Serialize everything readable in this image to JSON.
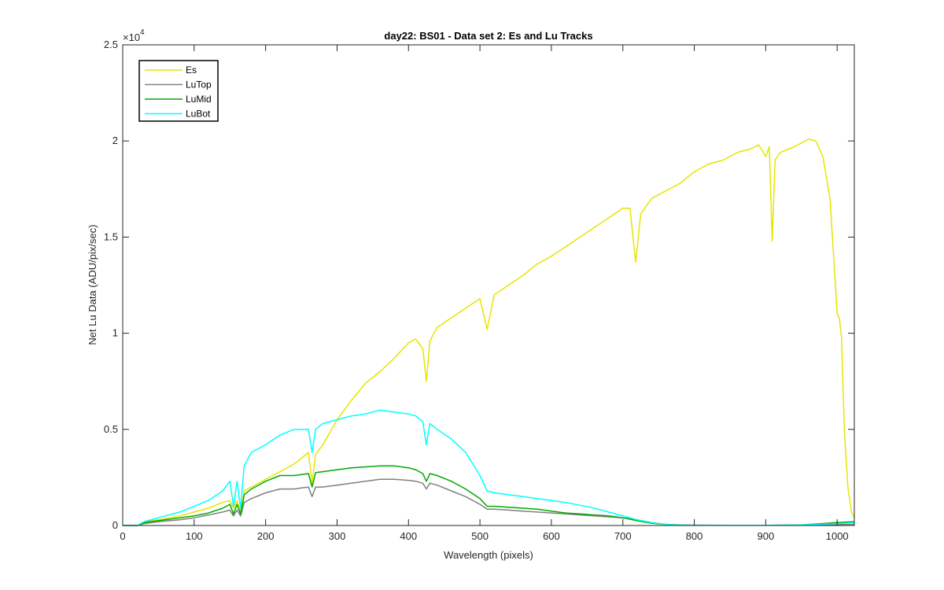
{
  "chart_data": {
    "type": "line",
    "title": "day22: BS01 - Data set 2: Es and Lu Tracks",
    "xlabel": "Wavelength (pixels)",
    "ylabel": "Net Lu Data (ADU/pix/sec)",
    "xlim": [
      0,
      1024
    ],
    "ylim": [
      0,
      25000
    ],
    "y_exponent_label": "×10",
    "y_exponent_power": "4",
    "xticks": [
      0,
      100,
      200,
      300,
      400,
      500,
      600,
      700,
      800,
      900,
      1000
    ],
    "xtick_labels": [
      "0",
      "100",
      "200",
      "300",
      "400",
      "500",
      "600",
      "700",
      "800",
      "900",
      "1000"
    ],
    "yticks": [
      0,
      5000,
      10000,
      15000,
      20000,
      25000
    ],
    "ytick_labels": [
      "0",
      "0.5",
      "1",
      "1.5",
      "2",
      "2.5"
    ],
    "grid": false,
    "legend_position": "top-left",
    "series": [
      {
        "name": "Es",
        "color": "#e6e600",
        "x": [
          0,
          20,
          30,
          50,
          80,
          100,
          120,
          140,
          150,
          155,
          160,
          165,
          170,
          180,
          200,
          220,
          240,
          250,
          260,
          265,
          270,
          280,
          300,
          320,
          340,
          360,
          380,
          400,
          410,
          420,
          425,
          430,
          440,
          460,
          480,
          500,
          510,
          520,
          540,
          560,
          580,
          600,
          620,
          640,
          660,
          680,
          700,
          710,
          718,
          725,
          740,
          760,
          780,
          800,
          820,
          840,
          860,
          880,
          890,
          900,
          905,
          909,
          913,
          920,
          940,
          960,
          970,
          980,
          990,
          995,
          1000,
          1003,
          1006,
          1010,
          1015,
          1020,
          1024
        ],
        "y": [
          0,
          0,
          200,
          300,
          500,
          700,
          900,
          1200,
          1300,
          900,
          1300,
          700,
          1800,
          2000,
          2400,
          2800,
          3200,
          3500,
          3800,
          2200,
          3700,
          4200,
          5500,
          6500,
          7400,
          8000,
          8700,
          9500,
          9700,
          9200,
          7500,
          9600,
          10300,
          10800,
          11300,
          11800,
          10200,
          12000,
          12500,
          13000,
          13600,
          14000,
          14500,
          15000,
          15500,
          16000,
          16500,
          16500,
          13700,
          16200,
          17000,
          17400,
          17800,
          18400,
          18800,
          19000,
          19400,
          19600,
          19800,
          19200,
          19700,
          14800,
          19000,
          19400,
          19700,
          20100,
          20000,
          19200,
          17000,
          14000,
          11000,
          10800,
          9800,
          5000,
          2000,
          700,
          400
        ]
      },
      {
        "name": "LuTop",
        "color": "#808080",
        "x": [
          0,
          20,
          30,
          50,
          80,
          100,
          120,
          140,
          150,
          155,
          160,
          165,
          170,
          180,
          200,
          220,
          240,
          250,
          260,
          265,
          270,
          280,
          300,
          320,
          340,
          360,
          380,
          400,
          410,
          420,
          425,
          430,
          440,
          460,
          480,
          500,
          510,
          520,
          540,
          560,
          580,
          600,
          620,
          640,
          660,
          680,
          700,
          720,
          740,
          760,
          780,
          800,
          850,
          900,
          950,
          1000,
          1024
        ],
        "y": [
          0,
          0,
          100,
          200,
          300,
          400,
          550,
          700,
          800,
          500,
          800,
          500,
          1200,
          1400,
          1700,
          1900,
          1900,
          1950,
          2000,
          1500,
          2000,
          2000,
          2100,
          2200,
          2300,
          2400,
          2400,
          2350,
          2300,
          2200,
          1900,
          2200,
          2100,
          1800,
          1500,
          1100,
          850,
          850,
          800,
          750,
          700,
          650,
          600,
          550,
          500,
          450,
          400,
          300,
          150,
          60,
          30,
          20,
          10,
          10,
          20,
          50,
          60
        ]
      },
      {
        "name": "LuMid",
        "color": "#00aa00",
        "x": [
          0,
          20,
          30,
          50,
          80,
          100,
          120,
          140,
          150,
          155,
          160,
          165,
          170,
          180,
          200,
          220,
          240,
          250,
          260,
          265,
          270,
          280,
          300,
          320,
          340,
          360,
          380,
          400,
          410,
          420,
          425,
          430,
          440,
          460,
          480,
          500,
          510,
          520,
          540,
          560,
          580,
          600,
          620,
          640,
          660,
          680,
          700,
          720,
          740,
          760,
          780,
          800,
          850,
          900,
          950,
          1000,
          1024
        ],
        "y": [
          0,
          0,
          150,
          250,
          400,
          500,
          650,
          900,
          1100,
          600,
          1100,
          600,
          1600,
          1900,
          2300,
          2600,
          2600,
          2650,
          2700,
          2000,
          2750,
          2800,
          2900,
          3000,
          3050,
          3100,
          3100,
          3000,
          2900,
          2700,
          2300,
          2700,
          2600,
          2300,
          1900,
          1400,
          1000,
          1000,
          950,
          900,
          850,
          750,
          650,
          600,
          550,
          500,
          400,
          250,
          120,
          50,
          20,
          10,
          10,
          10,
          30,
          150,
          200
        ]
      },
      {
        "name": "LuBot",
        "color": "#00ffff",
        "x": [
          0,
          20,
          30,
          50,
          80,
          100,
          120,
          140,
          150,
          155,
          160,
          165,
          170,
          180,
          200,
          220,
          240,
          250,
          260,
          265,
          270,
          280,
          300,
          320,
          340,
          360,
          380,
          400,
          410,
          420,
          425,
          430,
          440,
          460,
          480,
          500,
          510,
          520,
          540,
          560,
          580,
          600,
          620,
          640,
          660,
          680,
          700,
          720,
          740,
          760,
          780,
          800,
          850,
          900,
          950,
          1000,
          1024
        ],
        "y": [
          0,
          0,
          200,
          400,
          700,
          1000,
          1300,
          1800,
          2300,
          1000,
          2300,
          900,
          3100,
          3800,
          4200,
          4700,
          5000,
          5000,
          5000,
          3800,
          5000,
          5300,
          5500,
          5700,
          5800,
          6000,
          5900,
          5800,
          5700,
          5400,
          4200,
          5300,
          5000,
          4500,
          3800,
          2600,
          1800,
          1700,
          1600,
          1500,
          1400,
          1300,
          1200,
          1050,
          900,
          700,
          500,
          300,
          150,
          50,
          20,
          10,
          10,
          10,
          30,
          100,
          150
        ]
      }
    ]
  }
}
